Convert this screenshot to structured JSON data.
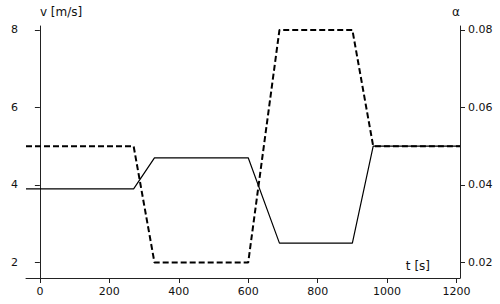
{
  "chart_data": {
    "type": "line",
    "x_label": "t [s]",
    "y_label": "v [m/s]",
    "y2_label": "α",
    "x": [
      -40,
      270,
      330,
      600,
      690,
      900,
      960,
      1210
    ],
    "series": [
      {
        "color": "#000000",
        "line_style": "dashed",
        "axis": "y",
        "values": [
          5,
          5,
          2,
          2,
          8,
          8,
          5,
          5
        ]
      },
      {
        "color": "#000000",
        "line_style": "solid",
        "axis": "y2",
        "values": [
          0.039,
          0.039,
          0.047,
          0.047,
          0.025,
          0.025,
          0.05,
          0.05
        ]
      }
    ],
    "xlim": [
      -40,
      1210
    ],
    "xticks": [
      0,
      200,
      400,
      600,
      800,
      1000,
      1200
    ],
    "ylim": [
      1.6,
      8.1
    ],
    "yticks": [
      2,
      4,
      6,
      8
    ],
    "y2lim": [
      0.016,
      0.081
    ],
    "y2ticks": [
      0.02,
      0.04,
      0.06,
      0.08
    ],
    "grid": false
  }
}
